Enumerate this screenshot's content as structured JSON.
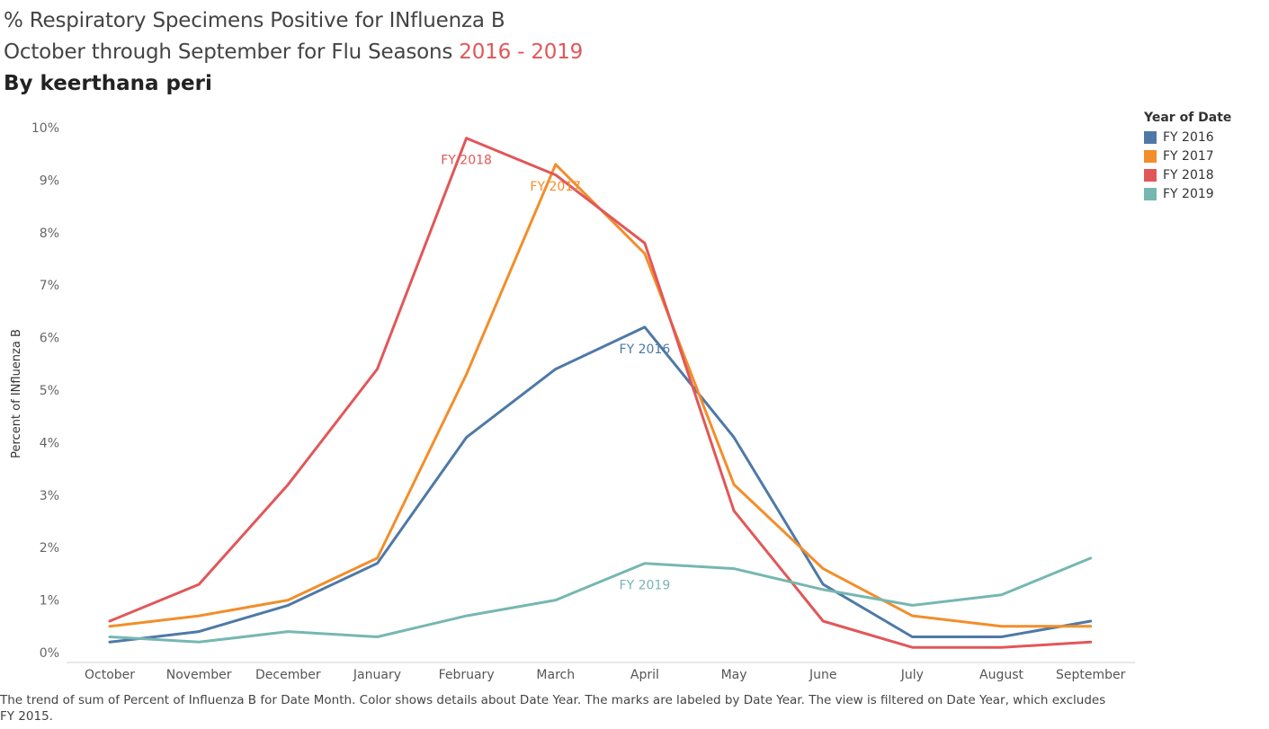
{
  "title": {
    "line1": "% Respiratory Specimens Positive for INfluenza B",
    "line2_prefix": "October through September for Flu Seasons ",
    "line2_highlight": "2016 - 2019",
    "author": "By keerthana peri"
  },
  "legend": {
    "title": "Year of Date",
    "items": [
      {
        "label": "FY 2016",
        "color": "#4e79a7"
      },
      {
        "label": "FY 2017",
        "color": "#f28e2b"
      },
      {
        "label": "FY 2018",
        "color": "#e15759"
      },
      {
        "label": "FY 2019",
        "color": "#76b7b2"
      }
    ]
  },
  "caption": "The trend of sum of Percent of Influenza B for Date Month.  Color shows details about Date Year.  The marks are labeled by Date Year. The view is filtered on Date Year, which excludes FY 2015.",
  "chart_data": {
    "type": "line",
    "ylabel": "Percent of INfluenza B",
    "xlabel": "",
    "ylim": [
      0,
      10
    ],
    "yticks": [
      {
        "value": 0,
        "label": "0%"
      },
      {
        "value": 1,
        "label": "1%"
      },
      {
        "value": 2,
        "label": "2%"
      },
      {
        "value": 3,
        "label": "3%"
      },
      {
        "value": 4,
        "label": "4%"
      },
      {
        "value": 5,
        "label": "5%"
      },
      {
        "value": 6,
        "label": "6%"
      },
      {
        "value": 7,
        "label": "7%"
      },
      {
        "value": 8,
        "label": "8%"
      },
      {
        "value": 9,
        "label": "9%"
      },
      {
        "value": 10,
        "label": "10%"
      }
    ],
    "categories": [
      "October",
      "November",
      "December",
      "January",
      "February",
      "March",
      "April",
      "May",
      "June",
      "July",
      "August",
      "September"
    ],
    "grid": false,
    "legend_position": "top-right",
    "series": [
      {
        "name": "FY 2016",
        "color": "#4e79a7",
        "values": [
          0.2,
          0.4,
          0.9,
          1.7,
          4.1,
          5.4,
          6.2,
          4.1,
          1.3,
          0.3,
          0.3,
          0.6
        ],
        "label": {
          "text": "FY 2016",
          "index": 6
        }
      },
      {
        "name": "FY 2017",
        "color": "#f28e2b",
        "values": [
          0.5,
          0.7,
          1.0,
          1.8,
          5.3,
          9.3,
          7.6,
          3.2,
          1.6,
          0.7,
          0.5,
          0.5
        ],
        "label": {
          "text": "FY 2017",
          "index": 5
        }
      },
      {
        "name": "FY 2018",
        "color": "#e15759",
        "values": [
          0.6,
          1.3,
          3.2,
          5.4,
          9.8,
          9.1,
          7.8,
          2.7,
          0.6,
          0.1,
          0.1,
          0.2
        ],
        "label": {
          "text": "FY 2018",
          "index": 4
        }
      },
      {
        "name": "FY 2019",
        "color": "#76b7b2",
        "values": [
          0.3,
          0.2,
          0.4,
          0.3,
          0.7,
          1.0,
          1.7,
          1.6,
          1.2,
          0.9,
          1.1,
          1.8
        ],
        "label": {
          "text": "FY 2019",
          "index": 6
        }
      }
    ]
  }
}
